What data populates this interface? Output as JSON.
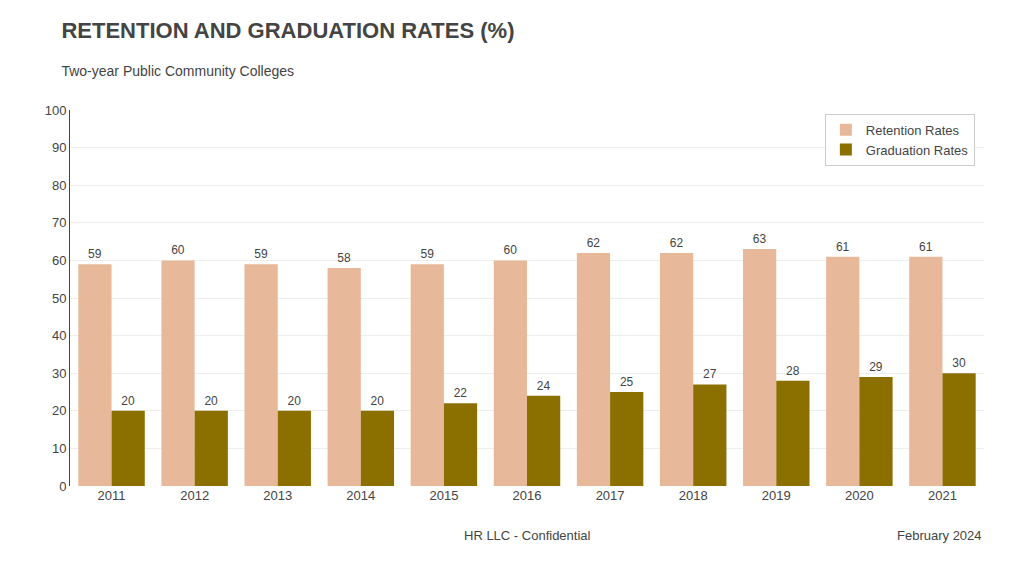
{
  "chart_data": {
    "type": "bar",
    "title": "RETENTION AND GRADUATION RATES (%)",
    "subtitle": "Two-year Public Community Colleges",
    "annotations": [
      "HR LLC - Confidential",
      "February 2024"
    ],
    "categories": [
      "2011",
      "2012",
      "2013",
      "2014",
      "2015",
      "2016",
      "2017",
      "2018",
      "2019",
      "2020",
      "2021"
    ],
    "series": [
      {
        "name": "Retention Rates",
        "color": "#E8B89A",
        "values": [
          59,
          60,
          59,
          58,
          59,
          60,
          62,
          62,
          63,
          61,
          61
        ]
      },
      {
        "name": "Graduation Rates",
        "color": "#8B7000",
        "values": [
          20,
          20,
          20,
          20,
          22,
          24,
          25,
          27,
          28,
          29,
          30
        ]
      }
    ],
    "ylim": [
      0,
      100
    ],
    "yticks": [
      0,
      10,
      20,
      30,
      40,
      50,
      60,
      70,
      80,
      90,
      100
    ],
    "grid": true,
    "legend": "upper right",
    "data_labels": true
  }
}
